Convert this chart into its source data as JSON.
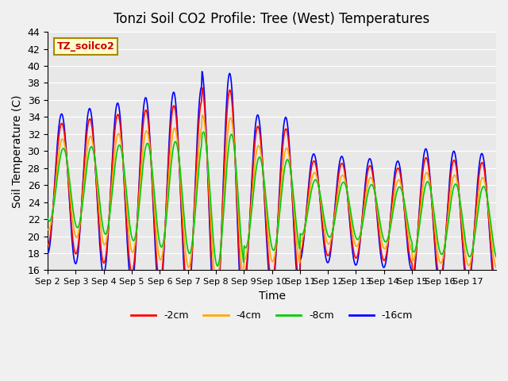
{
  "title": "Tonzi Soil CO2 Profile: Tree (West) Temperatures",
  "xlabel": "Time",
  "ylabel": "Soil Temperature (C)",
  "ylim": [
    16,
    44
  ],
  "yticks": [
    16,
    18,
    20,
    22,
    24,
    26,
    28,
    30,
    32,
    34,
    36,
    38,
    40,
    42,
    44
  ],
  "series_labels": [
    "-2cm",
    "-4cm",
    "-8cm",
    "-16cm"
  ],
  "series_colors": [
    "#ff0000",
    "#ffaa00",
    "#00cc00",
    "#0000ff"
  ],
  "days": [
    "Sep 2",
    "Sep 3",
    "Sep 4",
    "Sep 5",
    "Sep 6",
    "Sep 7",
    "Sep 8",
    "Sep 9",
    "Sep 10",
    "Sep 11",
    "Sep 12",
    "Sep 13",
    "Sep 14",
    "Sep 15",
    "Sep 16",
    "Sep 17"
  ],
  "n_points_per_day": 48,
  "n_days": 16
}
